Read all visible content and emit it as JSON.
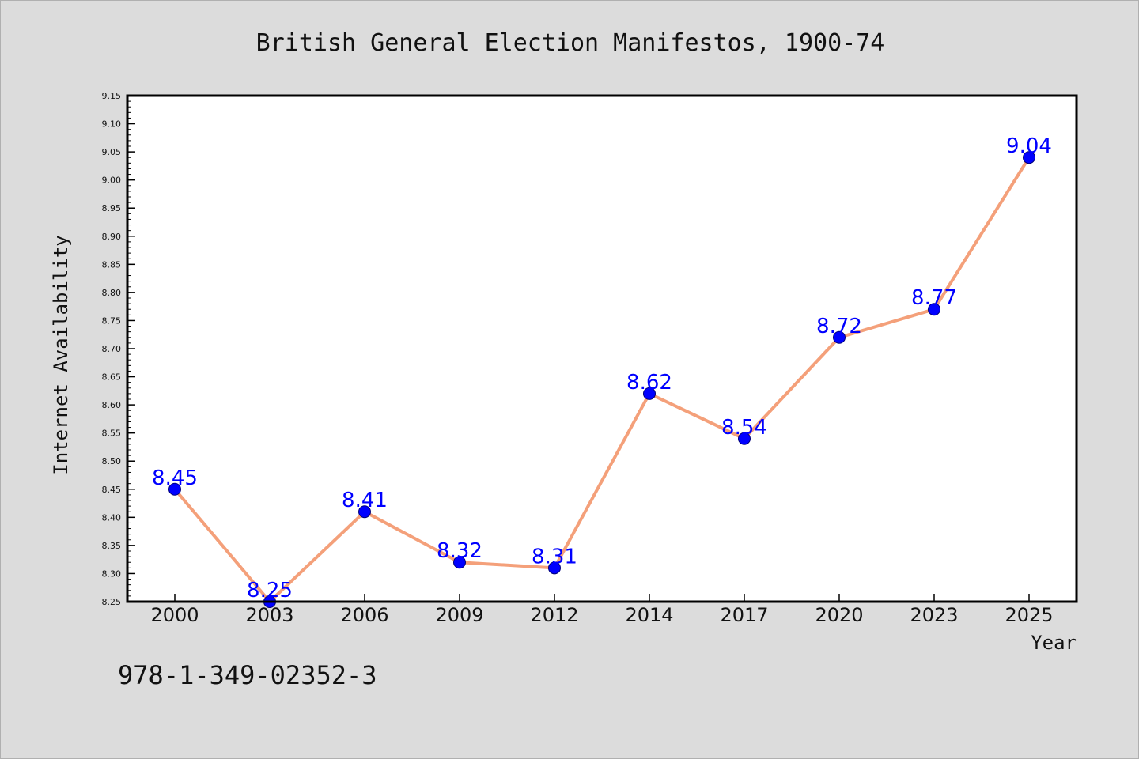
{
  "chart_data": {
    "type": "line",
    "title": "British General Election Manifestos, 1900-74",
    "xlabel": "Year",
    "ylabel": "Internet Availability",
    "categories": [
      "2000",
      "2003",
      "2006",
      "2009",
      "2012",
      "2014",
      "2017",
      "2020",
      "2023",
      "2025"
    ],
    "series": [
      {
        "values": [
          8.45,
          8.25,
          8.41,
          8.32,
          8.31,
          8.62,
          8.54,
          8.72,
          8.77,
          9.04
        ],
        "labels": [
          "8.45",
          "8.25",
          "8.41",
          "8.32",
          "8.31",
          "8.62",
          "8.54",
          "8.72",
          "8.77",
          "9.04"
        ]
      }
    ],
    "ylim": [
      8.25,
      9.15
    ],
    "yticks": [
      "8.25",
      "8.30",
      "8.35",
      "8.40",
      "8.45",
      "8.50",
      "8.55",
      "8.60",
      "8.65",
      "8.70",
      "8.75",
      "8.80",
      "8.85",
      "8.90",
      "8.95",
      "9.00",
      "9.05",
      "9.10",
      "9.15"
    ],
    "grid": false,
    "legend": "none",
    "line_color": "#f4a07a",
    "marker_color": "#0000ff",
    "label_color": "#0000ff"
  },
  "footnote": "978-1-349-02352-3"
}
